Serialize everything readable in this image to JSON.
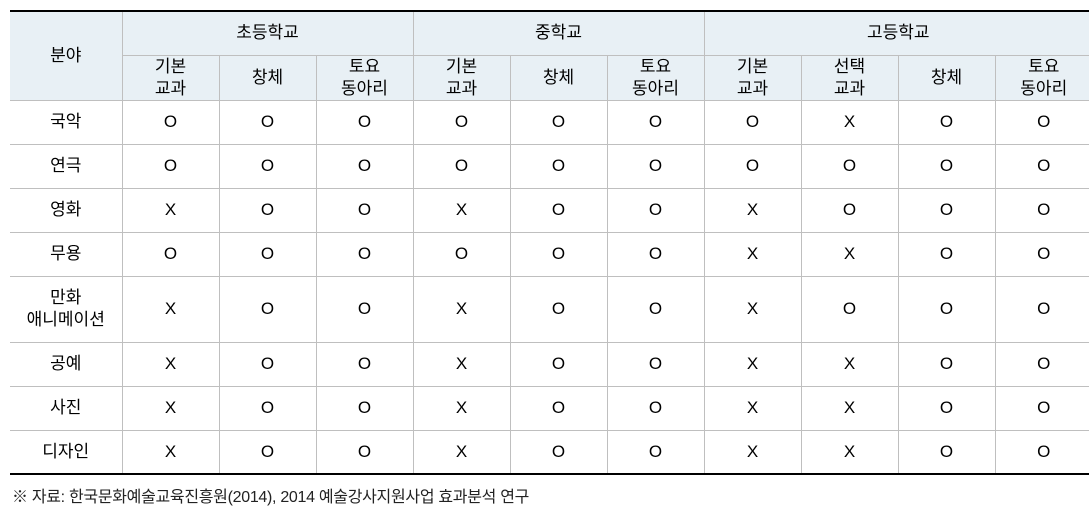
{
  "table": {
    "fieldHeader": "분야",
    "schoolLevels": [
      "초등학교",
      "중학교",
      "고등학교"
    ],
    "subHeaders": {
      "elementary": [
        "기본\n교과",
        "창체",
        "토요\n동아리"
      ],
      "middle": [
        "기본\n교과",
        "창체",
        "토요\n동아리"
      ],
      "high": [
        "기본\n교과",
        "선택\n교과",
        "창체",
        "토요\n동아리"
      ]
    },
    "rows": [
      {
        "field": "국악",
        "values": [
          "O",
          "O",
          "O",
          "O",
          "O",
          "O",
          "O",
          "X",
          "O",
          "O"
        ]
      },
      {
        "field": "연극",
        "values": [
          "O",
          "O",
          "O",
          "O",
          "O",
          "O",
          "O",
          "O",
          "O",
          "O"
        ]
      },
      {
        "field": "영화",
        "values": [
          "X",
          "O",
          "O",
          "X",
          "O",
          "O",
          "X",
          "O",
          "O",
          "O"
        ]
      },
      {
        "field": "무용",
        "values": [
          "O",
          "O",
          "O",
          "O",
          "O",
          "O",
          "X",
          "X",
          "O",
          "O"
        ]
      },
      {
        "field": "만화\n애니메이션",
        "values": [
          "X",
          "O",
          "O",
          "X",
          "O",
          "O",
          "X",
          "O",
          "O",
          "O"
        ],
        "tall": true
      },
      {
        "field": "공예",
        "values": [
          "X",
          "O",
          "O",
          "X",
          "O",
          "O",
          "X",
          "X",
          "O",
          "O"
        ]
      },
      {
        "field": "사진",
        "values": [
          "X",
          "O",
          "O",
          "X",
          "O",
          "O",
          "X",
          "X",
          "O",
          "O"
        ]
      },
      {
        "field": "디자인",
        "values": [
          "X",
          "O",
          "O",
          "X",
          "O",
          "O",
          "X",
          "X",
          "O",
          "O"
        ]
      }
    ]
  },
  "footnote": "※ 자료: 한국문화예술교육진흥원(2014), 2014 예술강사지원사업 효과분석 연구",
  "style": {
    "headerBg": "#e8f0f5",
    "borderColor": "#bfbfbf",
    "topBottomBorder": "#000000",
    "fontSize": 17,
    "footnoteFontSize": 16,
    "background": "#ffffff"
  }
}
